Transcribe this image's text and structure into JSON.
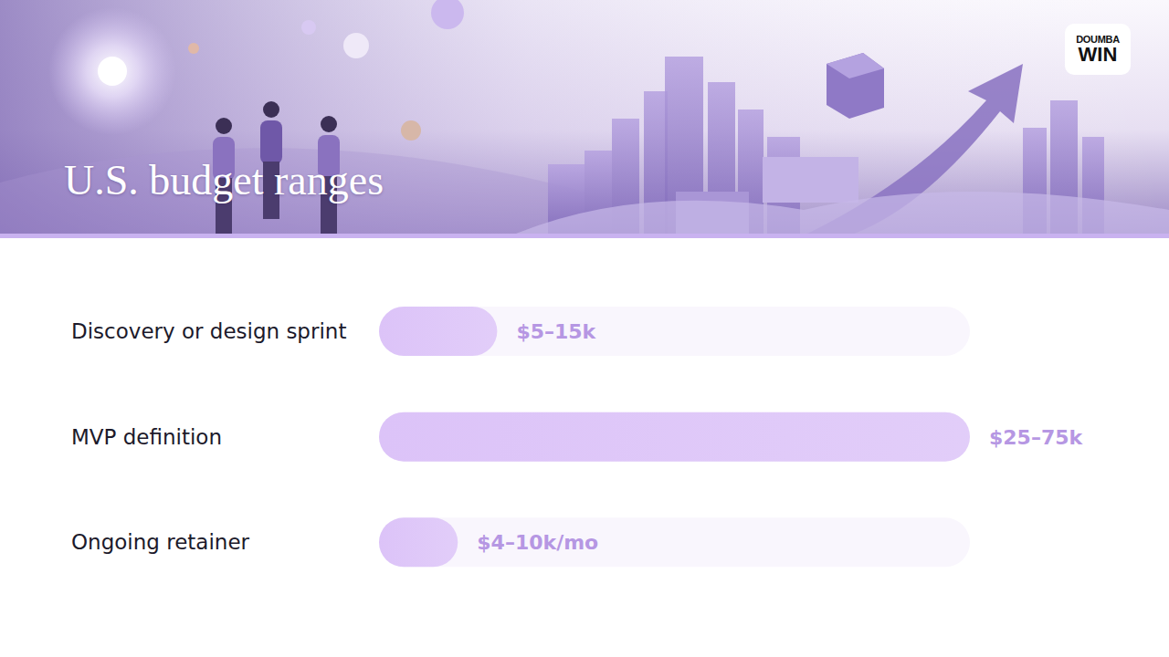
{
  "logo": [
    "DOUMBA",
    "WIN"
  ],
  "chart_data": {
    "type": "bar",
    "title": "U.S. budget ranges",
    "orientation": "horizontal",
    "categories": [
      "Discovery or design sprint",
      "MVP definition",
      "Ongoing retainer"
    ],
    "values": [
      15,
      75,
      10
    ],
    "value_labels": [
      "$5–15k",
      "$25–75k",
      "$4–10k/mo"
    ],
    "xlim": [
      0,
      75
    ],
    "color": "#dcc3f8",
    "data_labels": true,
    "tick_labels": false,
    "grid": false
  }
}
